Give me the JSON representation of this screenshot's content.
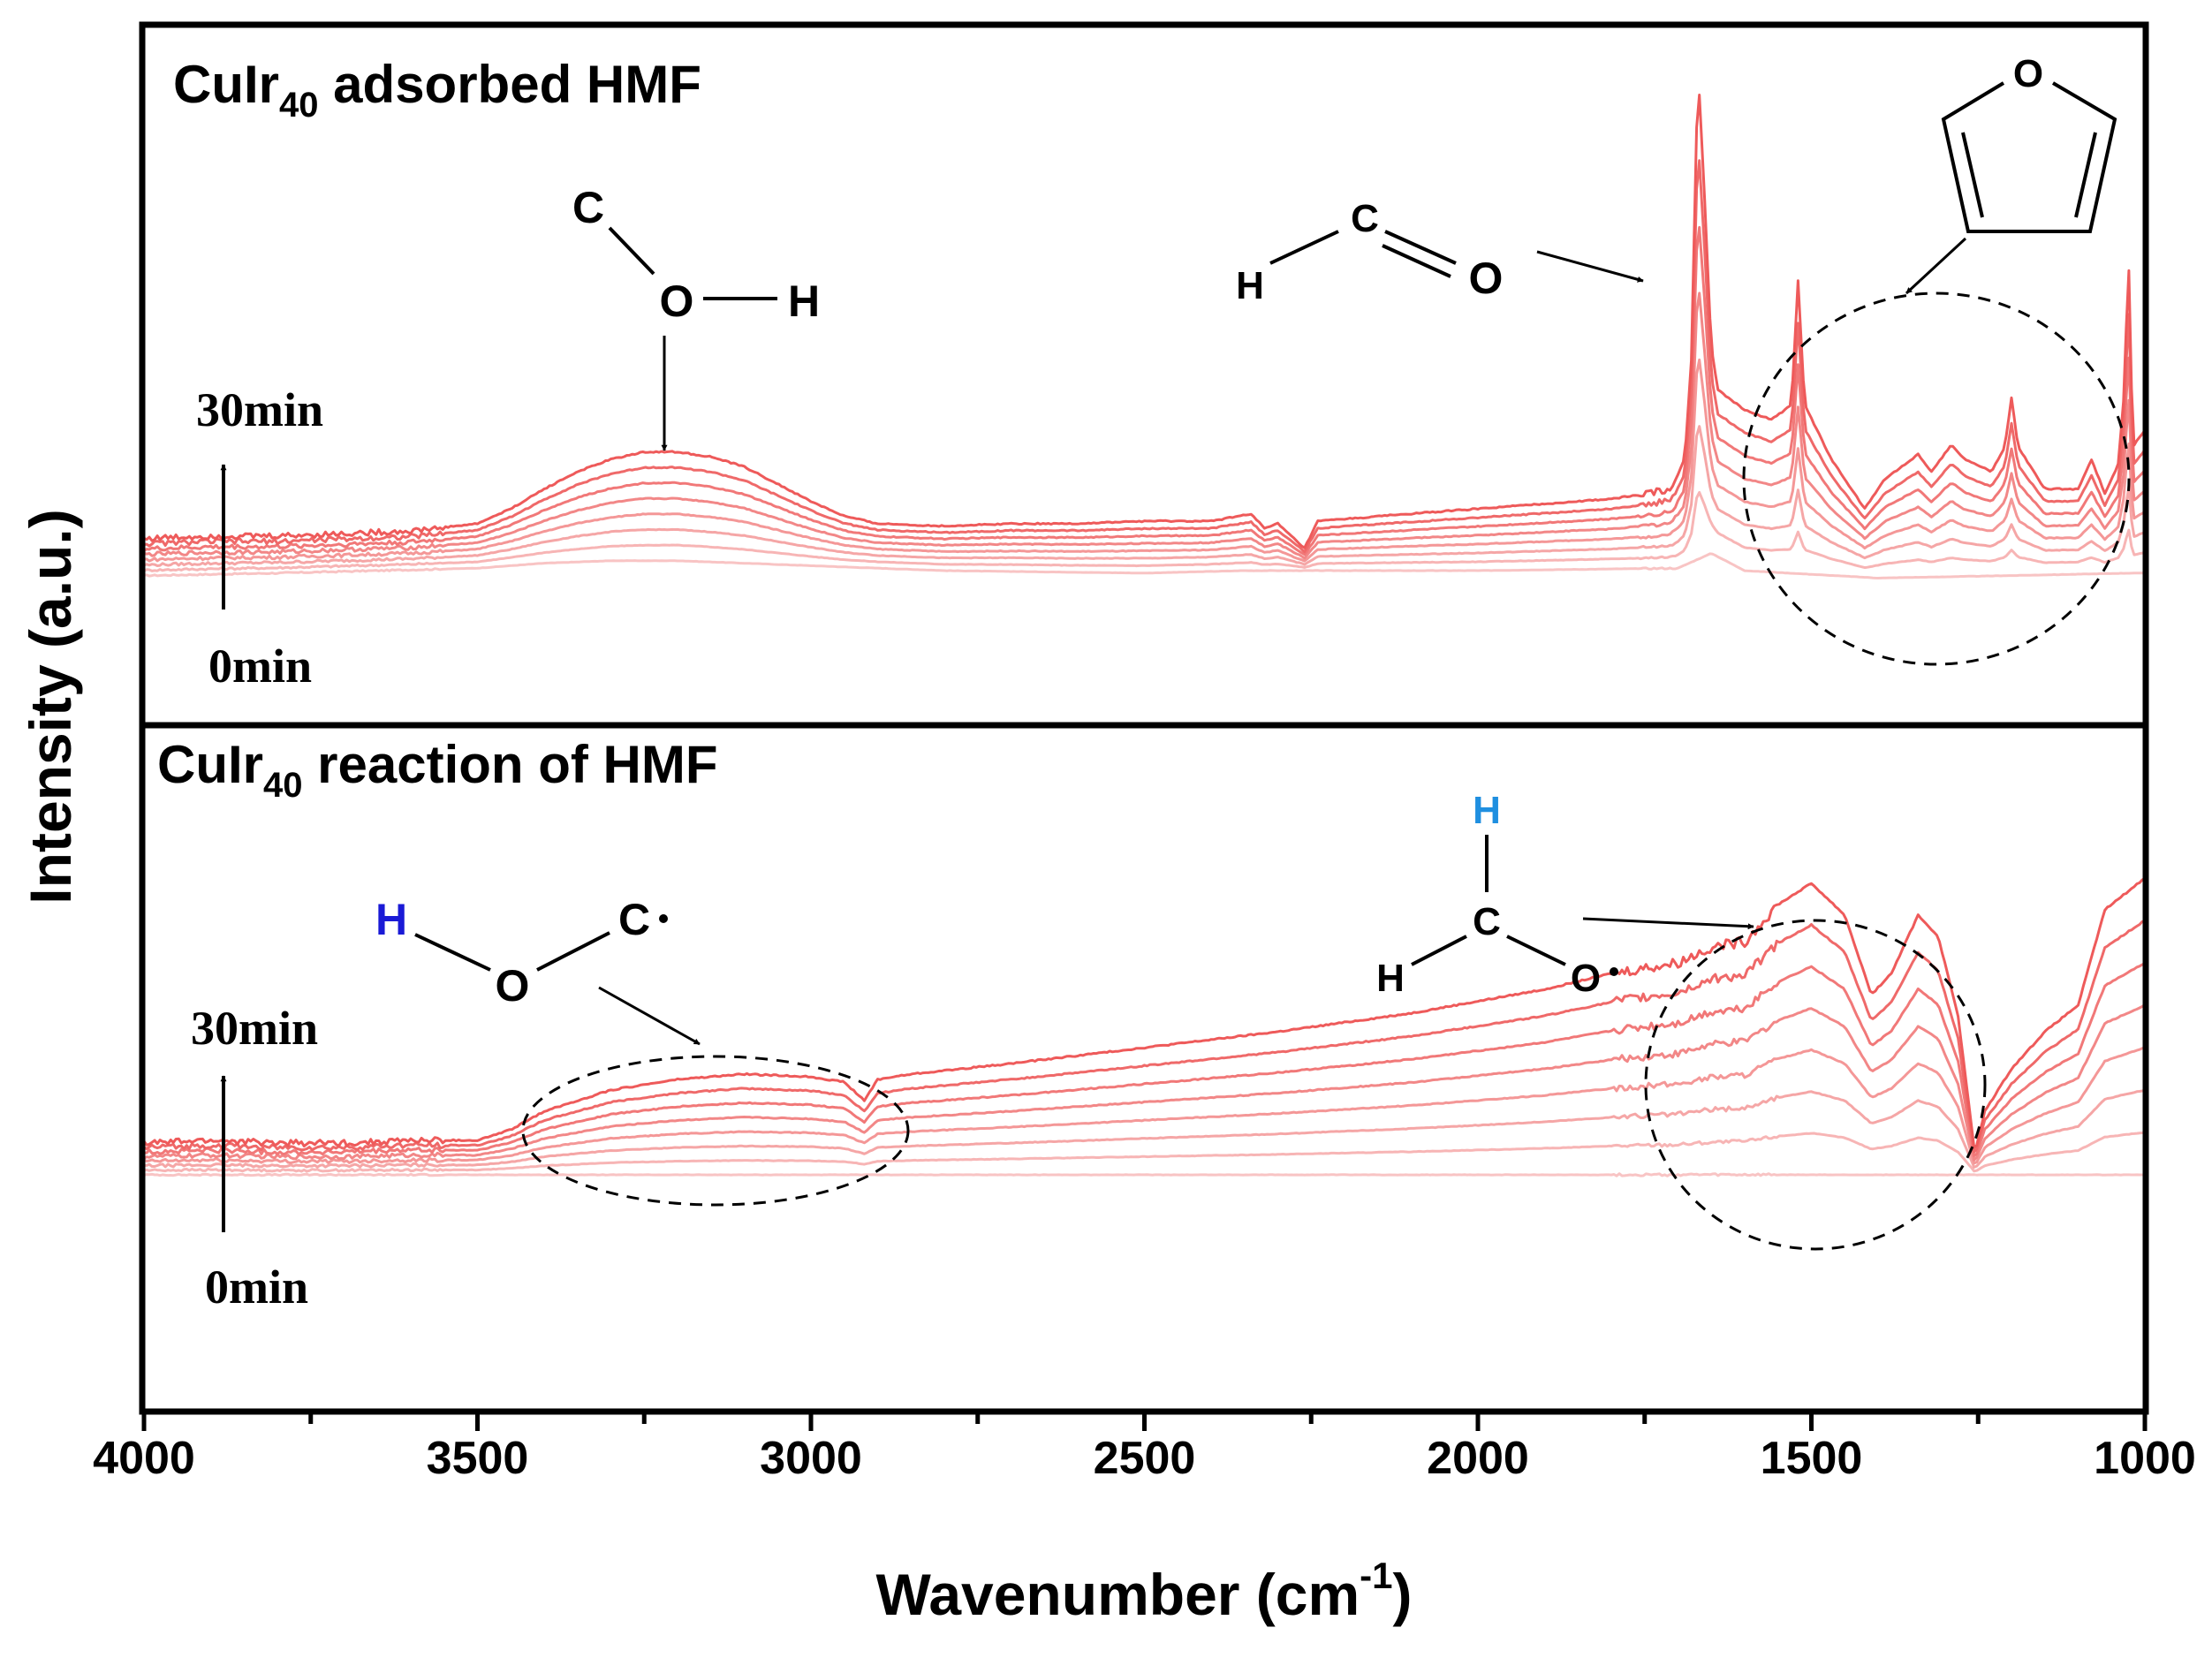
{
  "chart_data": {
    "type": "line",
    "title": "",
    "xlabel": "Wavenumber (cm",
    "xlabel_sup": "-1",
    "xlabel_close": ")",
    "ylabel": "Intensity (a.u.)",
    "xlim": [
      4000,
      1000
    ],
    "x_reversed": true,
    "x_ticks": [
      "4000",
      "3500",
      "3000",
      "2500",
      "2000",
      "1500",
      "1000"
    ],
    "line_color_start": "#f8c4c4",
    "line_color_end": "#ee5a5a",
    "n_spectra": 8,
    "panels": [
      {
        "name": "adsorbed",
        "title_main": "CuIr",
        "title_sub": "40",
        "title_rest": " adsorbed HMF",
        "time_top": "30min",
        "time_bottom": "0min",
        "baseline": [
          [
            4000,
            0.03
          ],
          [
            3800,
            0.04
          ],
          [
            3500,
            0.06
          ],
          [
            3400,
            0.08
          ],
          [
            3300,
            0.09
          ],
          [
            3200,
            0.09
          ],
          [
            3000,
            0.07
          ],
          [
            2800,
            0.05
          ],
          [
            2500,
            0.04
          ],
          [
            2350,
            0.05
          ],
          [
            2000,
            0.05
          ],
          [
            1700,
            0.06
          ],
          [
            1650,
            0.12
          ],
          [
            1600,
            0.05
          ],
          [
            1400,
            0.02
          ],
          [
            1200,
            0.03
          ],
          [
            1020,
            0.04
          ],
          [
            1000,
            0.04
          ]
        ],
        "final_spectrum": [
          [
            4000,
            0.18
          ],
          [
            3900,
            0.19
          ],
          [
            3800,
            0.19
          ],
          [
            3700,
            0.2
          ],
          [
            3600,
            0.21
          ],
          [
            3500,
            0.24
          ],
          [
            3450,
            0.3
          ],
          [
            3400,
            0.38
          ],
          [
            3350,
            0.45
          ],
          [
            3300,
            0.5
          ],
          [
            3250,
            0.53
          ],
          [
            3200,
            0.53
          ],
          [
            3150,
            0.51
          ],
          [
            3100,
            0.47
          ],
          [
            3050,
            0.4
          ],
          [
            3000,
            0.33
          ],
          [
            2950,
            0.27
          ],
          [
            2900,
            0.24
          ],
          [
            2800,
            0.23
          ],
          [
            2700,
            0.24
          ],
          [
            2600,
            0.24
          ],
          [
            2500,
            0.25
          ],
          [
            2400,
            0.25
          ],
          [
            2340,
            0.28
          ],
          [
            2320,
            0.22
          ],
          [
            2300,
            0.24
          ],
          [
            2260,
            0.14
          ],
          [
            2240,
            0.25
          ],
          [
            2100,
            0.28
          ],
          [
            2000,
            0.3
          ],
          [
            1900,
            0.32
          ],
          [
            1800,
            0.34
          ],
          [
            1750,
            0.36
          ],
          [
            1710,
            0.38
          ],
          [
            1690,
            0.5
          ],
          [
            1680,
            0.9
          ],
          [
            1670,
            2.08
          ],
          [
            1660,
            1.55
          ],
          [
            1650,
            0.95
          ],
          [
            1640,
            0.78
          ],
          [
            1600,
            0.7
          ],
          [
            1560,
            0.66
          ],
          [
            1530,
            0.72
          ],
          [
            1520,
            1.22
          ],
          [
            1510,
            0.72
          ],
          [
            1470,
            0.5
          ],
          [
            1420,
            0.3
          ],
          [
            1390,
            0.42
          ],
          [
            1360,
            0.48
          ],
          [
            1340,
            0.52
          ],
          [
            1320,
            0.45
          ],
          [
            1290,
            0.56
          ],
          [
            1270,
            0.5
          ],
          [
            1230,
            0.45
          ],
          [
            1210,
            0.55
          ],
          [
            1200,
            0.75
          ],
          [
            1190,
            0.55
          ],
          [
            1150,
            0.38
          ],
          [
            1100,
            0.38
          ],
          [
            1080,
            0.5
          ],
          [
            1060,
            0.36
          ],
          [
            1040,
            0.48
          ],
          [
            1030,
            0.8
          ],
          [
            1025,
            1.38
          ],
          [
            1018,
            0.55
          ],
          [
            1000,
            0.62
          ]
        ],
        "annotations": [
          {
            "type": "molecule",
            "name": "C-O-H",
            "atoms": [
              "C",
              "O",
              "H"
            ]
          },
          {
            "type": "molecule",
            "name": "H-C=O",
            "atoms": [
              "H",
              "C",
              "O"
            ]
          },
          {
            "type": "molecule",
            "name": "furan",
            "atoms": [
              "O"
            ]
          }
        ]
      },
      {
        "name": "reaction",
        "title_main": "CuIr",
        "title_sub": "40",
        "title_rest": " reaction of HMF",
        "time_top": "30min",
        "time_bottom": "0min",
        "baseline": [
          [
            4000,
            0.0
          ],
          [
            3500,
            0.0
          ],
          [
            3000,
            0.0
          ],
          [
            2500,
            0.0
          ],
          [
            2000,
            0.0
          ],
          [
            1500,
            0.0
          ],
          [
            1250,
            0.0
          ],
          [
            1000,
            0.0
          ]
        ],
        "final_spectrum": [
          [
            4000,
            0.12
          ],
          [
            3900,
            0.13
          ],
          [
            3800,
            0.12
          ],
          [
            3700,
            0.12
          ],
          [
            3600,
            0.13
          ],
          [
            3500,
            0.13
          ],
          [
            3450,
            0.17
          ],
          [
            3400,
            0.24
          ],
          [
            3300,
            0.32
          ],
          [
            3200,
            0.36
          ],
          [
            3100,
            0.38
          ],
          [
            3000,
            0.37
          ],
          [
            2950,
            0.35
          ],
          [
            2920,
            0.28
          ],
          [
            2900,
            0.36
          ],
          [
            2850,
            0.38
          ],
          [
            2700,
            0.42
          ],
          [
            2500,
            0.48
          ],
          [
            2300,
            0.54
          ],
          [
            2100,
            0.61
          ],
          [
            1900,
            0.7
          ],
          [
            1800,
            0.76
          ],
          [
            1700,
            0.8
          ],
          [
            1650,
            0.86
          ],
          [
            1600,
            0.88
          ],
          [
            1550,
            1.02
          ],
          [
            1500,
            1.1
          ],
          [
            1450,
            0.98
          ],
          [
            1410,
            0.68
          ],
          [
            1380,
            0.76
          ],
          [
            1340,
            0.98
          ],
          [
            1310,
            0.9
          ],
          [
            1280,
            0.6
          ],
          [
            1255,
            0.08
          ],
          [
            1240,
            0.24
          ],
          [
            1200,
            0.4
          ],
          [
            1150,
            0.54
          ],
          [
            1100,
            0.64
          ],
          [
            1060,
            1.0
          ],
          [
            1000,
            1.12
          ]
        ],
        "annotations": [
          {
            "type": "molecule",
            "name": "H-O-C radical",
            "atoms": [
              "H",
              "O",
              "C"
            ]
          },
          {
            "type": "molecule",
            "name": "H2C-O radical",
            "atoms": [
              "H",
              "H",
              "C",
              "O"
            ]
          }
        ]
      }
    ]
  }
}
